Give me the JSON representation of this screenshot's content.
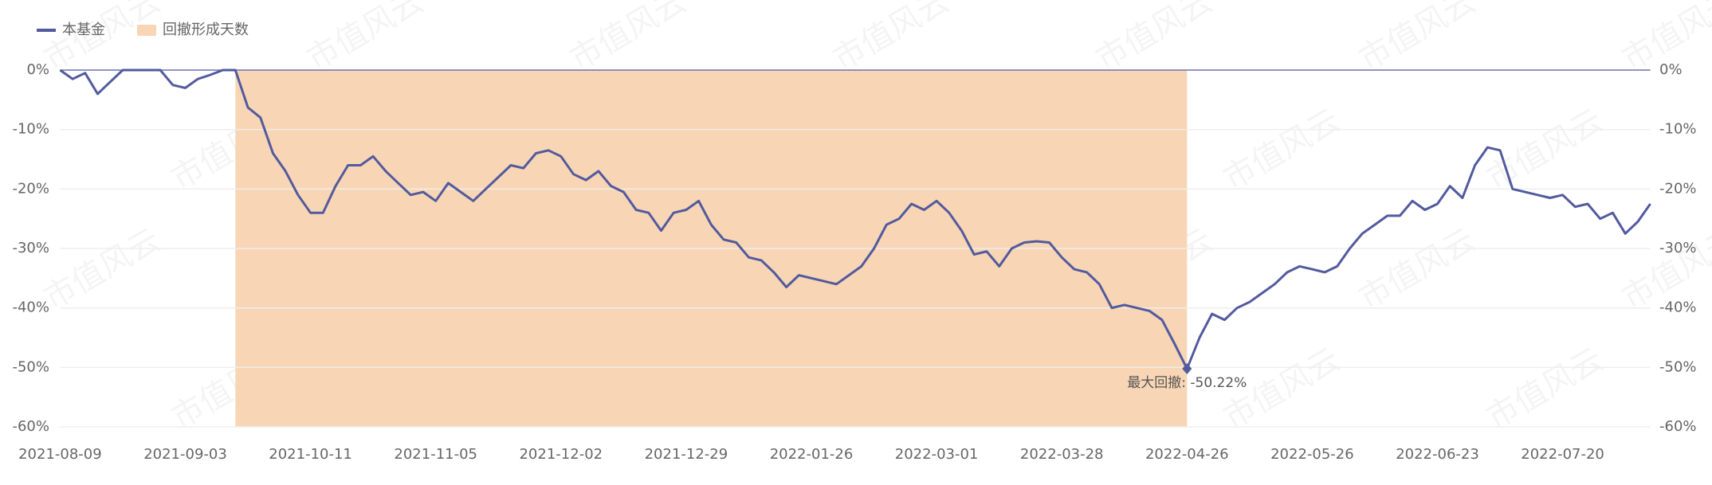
{
  "chart_data": {
    "type": "line",
    "watermark": "市值风云",
    "categories": [
      "2021-08-09",
      null,
      null,
      null,
      null,
      null,
      null,
      null,
      null,
      null,
      "2021-09-03",
      null,
      null,
      null,
      null,
      null,
      null,
      null,
      null,
      null,
      "2021-10-11",
      null,
      null,
      null,
      null,
      null,
      null,
      null,
      null,
      null,
      "2021-11-05",
      null,
      null,
      null,
      null,
      null,
      null,
      null,
      null,
      null,
      "2021-12-02",
      null,
      null,
      null,
      null,
      null,
      null,
      null,
      null,
      null,
      "2021-12-29",
      null,
      null,
      null,
      null,
      null,
      null,
      null,
      null,
      null,
      "2022-01-26",
      null,
      null,
      null,
      null,
      null,
      null,
      null,
      null,
      null,
      "2022-03-01",
      null,
      null,
      null,
      null,
      null,
      null,
      null,
      null,
      null,
      "2022-03-28",
      null,
      null,
      null,
      null,
      null,
      null,
      null,
      null,
      null,
      "2022-04-26",
      null,
      null,
      null,
      null,
      null,
      null,
      null,
      null,
      null,
      "2022-05-26",
      null,
      null,
      null,
      null,
      null,
      null,
      null,
      null,
      null,
      "2022-06-23",
      null,
      null,
      null,
      null,
      null,
      null,
      null,
      null,
      null,
      "2022-07-20",
      null,
      null,
      null,
      null,
      null,
      null,
      null
    ],
    "series": [
      {
        "name": "本基金",
        "color": "#525a9e",
        "values": [
          0,
          -1.5,
          -0.5,
          -4,
          -2,
          0,
          0,
          0,
          0,
          -2.5,
          -3,
          -1.5,
          -0.8,
          0,
          0,
          -6.3,
          -8,
          -14,
          -17,
          -21,
          -24,
          -24,
          -19.5,
          -16,
          -16,
          -14.5,
          -17,
          -19,
          -21,
          -20.5,
          -22,
          -19,
          -20.5,
          -22,
          -20,
          -18,
          -16,
          -16.5,
          -14,
          -13.5,
          -14.5,
          -17.5,
          -18.5,
          -17,
          -19.5,
          -20.5,
          -23.5,
          -24,
          -27,
          -24,
          -23.5,
          -22,
          -26,
          -28.5,
          -29,
          -31.5,
          -32,
          -34,
          -36.5,
          -34.5,
          -35,
          -35.5,
          -36,
          -34.5,
          -33,
          -30,
          -26,
          -25,
          -22.5,
          -23.5,
          -22,
          -24,
          -27,
          -31,
          -30.5,
          -33,
          -30,
          -29,
          -28.8,
          -29,
          -31.5,
          -33.5,
          -34,
          -36,
          -40,
          -39.5,
          -40,
          -40.5,
          -42,
          -46,
          -50.22,
          -45,
          -41,
          -42,
          -40,
          -39,
          -37.5,
          -36,
          -34,
          -33,
          -33.5,
          -34,
          -33,
          -30,
          -27.5,
          -26,
          -24.5,
          -24.5,
          -22,
          -23.5,
          -22.5,
          -19.5,
          -21.5,
          -16,
          -13,
          -13.5,
          -20,
          -20.5,
          -21,
          -21.5,
          -21,
          -23,
          -22.5,
          -25,
          -24,
          -27.5,
          -25.5,
          -22.5
        ]
      }
    ],
    "drawdown_area": {
      "name": "回撤形成天数",
      "color": "#f8d6b5",
      "start": 14,
      "end": 90
    },
    "annotation": {
      "label": "最大回撤: -50.22%",
      "index": 90,
      "value": -50.22
    },
    "ylim": [
      -60,
      0
    ],
    "yticks": [
      {
        "value": 0,
        "label": "0%"
      },
      {
        "value": -10,
        "label": "-10%"
      },
      {
        "value": -20,
        "label": "-20%"
      },
      {
        "value": -30,
        "label": "-30%"
      },
      {
        "value": -40,
        "label": "-40%"
      },
      {
        "value": -50,
        "label": "-50%"
      },
      {
        "value": -60,
        "label": "-60%"
      }
    ],
    "grid": true
  }
}
